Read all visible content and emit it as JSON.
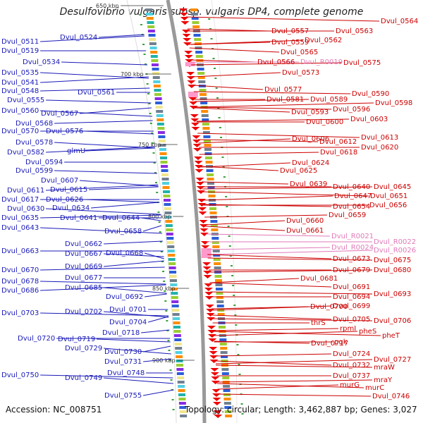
{
  "title": "Desulfovibrio vulgaris subsp. vulgaris DP4, complete genome",
  "accession": "Accession: NC_008751",
  "summary": "Topology: circular; Length: 3,462,887 bp; Genes: 3,027",
  "colors": {
    "left_labels": "#1a1ab8",
    "right_labels": "#cc0000",
    "rna_labels": "#e07ab8",
    "backbone": "#999999",
    "tick": "#3aa03a"
  },
  "scale_marks": [
    {
      "label": "650 kbp"
    },
    {
      "label": "700 kbp"
    },
    {
      "label": "750 kbp"
    },
    {
      "label": "800 kbp"
    },
    {
      "label": "850 kbp"
    },
    {
      "label": "900 kbp"
    }
  ],
  "left_labels": [
    {
      "label": "Dvul_0511"
    },
    {
      "label": "Dvul_0524"
    },
    {
      "label": "Dvul_0519"
    },
    {
      "label": "Dvul_0534"
    },
    {
      "label": "Dvul_0535"
    },
    {
      "label": "Dvul_0541"
    },
    {
      "label": "Dvul_0548"
    },
    {
      "label": "Dvul_0561"
    },
    {
      "label": "Dvul_0555"
    },
    {
      "label": "Dvul_0560"
    },
    {
      "label": "Dvul_0567"
    },
    {
      "label": "Dvul_0568"
    },
    {
      "label": "Dvul_0570"
    },
    {
      "label": "Dvul_0576"
    },
    {
      "label": "Dvul_0578"
    },
    {
      "label": "Dvul_0582"
    },
    {
      "label": "glmU"
    },
    {
      "label": "Dvul_0594"
    },
    {
      "label": "Dvul_0599"
    },
    {
      "label": "Dvul_0607"
    },
    {
      "label": "Dvul_0611"
    },
    {
      "label": "Dvul_0615"
    },
    {
      "label": "Dvul_0617"
    },
    {
      "label": "Dvul_0626"
    },
    {
      "label": "Dvul_0630"
    },
    {
      "label": "Dvul_0634"
    },
    {
      "label": "Dvul_0635"
    },
    {
      "label": "Dvul_0641"
    },
    {
      "label": "Dvul_0644"
    },
    {
      "label": "Dvul_0643"
    },
    {
      "label": "Dvul_0658"
    },
    {
      "label": "Dvul_0662"
    },
    {
      "label": "Dvul_0663"
    },
    {
      "label": "Dvul_0667"
    },
    {
      "label": "Dvul_0668"
    },
    {
      "label": "Dvul_0669"
    },
    {
      "label": "Dvul_0670"
    },
    {
      "label": "Dvul_0677"
    },
    {
      "label": "Dvul_0678"
    },
    {
      "label": "Dvul_0685"
    },
    {
      "label": "Dvul_0686"
    },
    {
      "label": "Dvul_0692"
    },
    {
      "label": "Dvul_0701"
    },
    {
      "label": "Dvul_0703"
    },
    {
      "label": "Dvul_0702"
    },
    {
      "label": "Dvul_0704"
    },
    {
      "label": "Dvul_0718"
    },
    {
      "label": "Dvul_0720"
    },
    {
      "label": "Dvul_0719"
    },
    {
      "label": "Dvul_0729"
    },
    {
      "label": "Dvul_0730"
    },
    {
      "label": "Dvul_0731"
    },
    {
      "label": "Dvul_0748"
    },
    {
      "label": "Dvul_0750"
    },
    {
      "label": "Dvul_0749"
    },
    {
      "label": "Dvul_0755"
    }
  ],
  "right_labels": [
    {
      "label": "Dvul_0564",
      "rna": false
    },
    {
      "label": "Dvul_0557",
      "rna": false
    },
    {
      "label": "Dvul_0563",
      "rna": false
    },
    {
      "label": "Dvul_0559",
      "rna": false
    },
    {
      "label": "Dvul_0562",
      "rna": false
    },
    {
      "label": "Dvul_0565",
      "rna": false
    },
    {
      "label": "Dvul_0566",
      "rna": false
    },
    {
      "label": "Dvul_R0019",
      "rna": true
    },
    {
      "label": "Dvul_0575",
      "rna": false
    },
    {
      "label": "Dvul_0573",
      "rna": false
    },
    {
      "label": "Dvul_0577",
      "rna": false
    },
    {
      "label": "Dvul_0590",
      "rna": false
    },
    {
      "label": "Dvul_0581",
      "rna": false
    },
    {
      "label": "Dvul_0589",
      "rna": false
    },
    {
      "label": "Dvul_0598",
      "rna": false
    },
    {
      "label": "Dvul_0593",
      "rna": false
    },
    {
      "label": "Dvul_0596",
      "rna": false
    },
    {
      "label": "Dvul_0600",
      "rna": false
    },
    {
      "label": "Dvul_0603",
      "rna": false
    },
    {
      "label": "Dvul_0606",
      "rna": false
    },
    {
      "label": "Dvul_0613",
      "rna": false
    },
    {
      "label": "Dvul_0612",
      "rna": false
    },
    {
      "label": "Dvul_0620",
      "rna": false
    },
    {
      "label": "Dvul_0618",
      "rna": false
    },
    {
      "label": "Dvul_0624",
      "rna": false
    },
    {
      "label": "Dvul_0625",
      "rna": false
    },
    {
      "label": "Dvul_0639",
      "rna": false
    },
    {
      "label": "Dvul_0640",
      "rna": false
    },
    {
      "label": "Dvul_0645",
      "rna": false
    },
    {
      "label": "Dvul_0647",
      "rna": false
    },
    {
      "label": "Dvul_0651",
      "rna": false
    },
    {
      "label": "Dvul_0654",
      "rna": false
    },
    {
      "label": "Dvul_0656",
      "rna": false
    },
    {
      "label": "Dvul_0659",
      "rna": false
    },
    {
      "label": "Dvul_0660",
      "rna": false
    },
    {
      "label": "Dvul_0661",
      "rna": false
    },
    {
      "label": "Dvul_R0021",
      "rna": true
    },
    {
      "label": "Dvul_R0022",
      "rna": true
    },
    {
      "label": "Dvul_R0024",
      "rna": true
    },
    {
      "label": "Dvul_R0026",
      "rna": true
    },
    {
      "label": "Dvul_0673",
      "rna": false
    },
    {
      "label": "Dvul_0675",
      "rna": false
    },
    {
      "label": "Dvul_0679",
      "rna": false
    },
    {
      "label": "Dvul_0680",
      "rna": false
    },
    {
      "label": "Dvul_0681",
      "rna": false
    },
    {
      "label": "Dvul_0691",
      "rna": false
    },
    {
      "label": "Dvul_0693",
      "rna": false
    },
    {
      "label": "Dvul_0694",
      "rna": false
    },
    {
      "label": "Dvul_0700",
      "rna": false
    },
    {
      "label": "Dvul_0699",
      "rna": false
    },
    {
      "label": "Dvul_0705",
      "rna": false
    },
    {
      "label": "Dvul_0706",
      "rna": false
    },
    {
      "label": "thrS",
      "rna": false
    },
    {
      "label": "rpmI",
      "rna": false
    },
    {
      "label": "pheS",
      "rna": false
    },
    {
      "label": "pheT",
      "rna": false
    },
    {
      "label": "Dvul_0717",
      "rna": false
    },
    {
      "label": "pgk",
      "rna": false
    },
    {
      "label": "Dvul_0724",
      "rna": false
    },
    {
      "label": "Dvul_0727",
      "rna": false
    },
    {
      "label": "Dvul_0732",
      "rna": false
    },
    {
      "label": "mraW",
      "rna": false
    },
    {
      "label": "Dvul_0737",
      "rna": false
    },
    {
      "label": "mraY",
      "rna": false
    },
    {
      "label": "murG",
      "rna": false
    },
    {
      "label": "murC",
      "rna": false
    },
    {
      "label": "Dvul_0746",
      "rna": false
    }
  ]
}
